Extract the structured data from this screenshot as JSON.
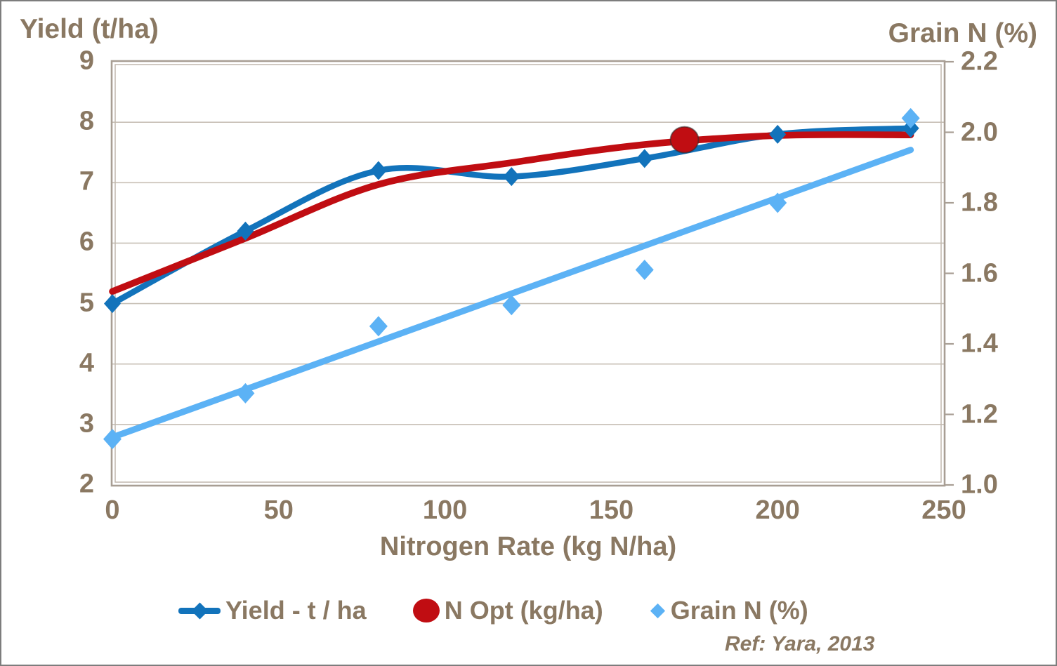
{
  "chart_data": {
    "type": "line",
    "x_axis": {
      "title": "Nitrogen Rate (kg N/ha)",
      "min": 0,
      "max": 250,
      "ticks": [
        0,
        50,
        100,
        150,
        200,
        250
      ]
    },
    "left_axis": {
      "title": "Yield (t/ha)",
      "min": 2,
      "max": 9,
      "ticks": [
        9,
        8,
        7,
        6,
        5,
        4,
        3,
        2
      ]
    },
    "right_axis": {
      "title": "Grain N (%)",
      "min": 1.0,
      "max": 2.2,
      "ticks": [
        "2.2",
        "2.0",
        "1.8",
        "1.6",
        "1.4",
        "1.2",
        "1.0"
      ]
    },
    "grid": "horizontal-only",
    "legend_position": "bottom",
    "x": [
      0,
      40,
      80,
      120,
      160,
      200,
      240
    ],
    "series": [
      {
        "name": "Yield - t / ha",
        "axis": "left",
        "type": "smooth-line-with-markers",
        "marker": "diamond",
        "color": "#1273bb",
        "values": [
          5.0,
          6.2,
          7.2,
          7.1,
          7.4,
          7.8,
          7.9
        ]
      },
      {
        "name": "N Opt (kg/ha)",
        "axis": "left",
        "type": "smooth-curve",
        "marker": "circle",
        "color": "#c00d12",
        "curve_points": [
          [
            0,
            5.2
          ],
          [
            40,
            6.08
          ],
          [
            80,
            6.97
          ],
          [
            120,
            7.33
          ],
          [
            160,
            7.63
          ],
          [
            200,
            7.78
          ],
          [
            240,
            7.79
          ]
        ],
        "optimum_point": {
          "x": 172,
          "y": 7.71
        }
      },
      {
        "name": "Grain N (%)",
        "axis": "right",
        "type": "scatter-with-linear-trendline",
        "marker": "diamond",
        "color": "#5cb2f5",
        "values": [
          1.13,
          1.26,
          1.45,
          1.51,
          1.61,
          1.8,
          2.04
        ],
        "trendline": [
          [
            0,
            1.135
          ],
          [
            240,
            1.95
          ]
        ]
      }
    ],
    "reference": "Ref: Yara, 2013"
  },
  "style_colors": {
    "text": "#8a7862",
    "gridline": "#c8c0b6",
    "border_outer": "#a89e94",
    "border_inner": "#c0b7ad"
  }
}
